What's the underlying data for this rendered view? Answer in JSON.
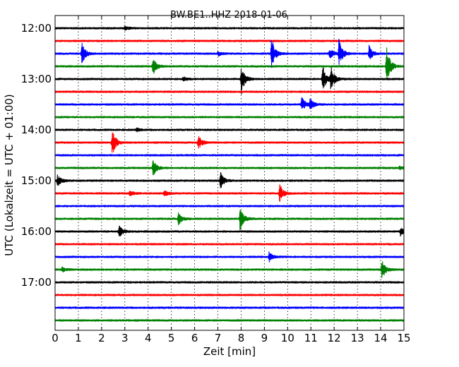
{
  "chart_data": {
    "type": "line",
    "title": "BW.BE1..HHZ 2018-01-06",
    "xlabel": "Zeit  [min]",
    "ylabel": "UTC (Lokalzeit = UTC + 01:00)",
    "xlim": [
      0,
      15
    ],
    "x_ticks": [
      "0",
      "1",
      "2",
      "3",
      "4",
      "5",
      "6",
      "7",
      "8",
      "9",
      "10",
      "11",
      "12",
      "13",
      "14",
      "15"
    ],
    "y_tick_labels": [
      "12:00",
      "13:00",
      "14:00",
      "15:00",
      "16:00",
      "17:00"
    ],
    "vertical_grid": "dotted, every minute",
    "color_cycle": [
      "#000000",
      "#ff0000",
      "#0000ff",
      "#008000"
    ],
    "traces": [
      {
        "start": "12:00",
        "color": "#000000",
        "events": [
          {
            "t": 3.0,
            "a": 0.12
          }
        ]
      },
      {
        "start": "12:15",
        "color": "#ff0000",
        "events": []
      },
      {
        "start": "12:30",
        "color": "#0000ff",
        "events": [
          {
            "t": 1.15,
            "a": 0.7
          },
          {
            "t": 9.3,
            "a": 1.05
          },
          {
            "t": 12.2,
            "a": 0.95
          },
          {
            "t": 11.8,
            "a": 0.35
          },
          {
            "t": 13.5,
            "a": 0.5
          },
          {
            "t": 7.0,
            "a": 0.15
          }
        ]
      },
      {
        "start": "12:45",
        "color": "#008000",
        "events": [
          {
            "t": 4.2,
            "a": 0.6
          },
          {
            "t": 14.25,
            "a": 1.35
          }
        ]
      },
      {
        "start": "13:00",
        "color": "#000000",
        "events": [
          {
            "t": 8.0,
            "a": 1.0
          },
          {
            "t": 11.5,
            "a": 0.9
          },
          {
            "t": 11.85,
            "a": 0.85
          },
          {
            "t": 5.5,
            "a": 0.2
          }
        ]
      },
      {
        "start": "13:15",
        "color": "#ff0000",
        "events": []
      },
      {
        "start": "13:30",
        "color": "#0000ff",
        "events": [
          {
            "t": 10.6,
            "a": 0.5
          },
          {
            "t": 10.95,
            "a": 0.4
          }
        ]
      },
      {
        "start": "13:45",
        "color": "#008000",
        "events": []
      },
      {
        "start": "14:00",
        "color": "#000000",
        "events": [
          {
            "t": 3.5,
            "a": 0.12
          }
        ]
      },
      {
        "start": "14:15",
        "color": "#ff0000",
        "events": [
          {
            "t": 2.45,
            "a": 0.9
          },
          {
            "t": 6.15,
            "a": 0.5
          }
        ]
      },
      {
        "start": "14:30",
        "color": "#0000ff",
        "events": []
      },
      {
        "start": "14:45",
        "color": "#008000",
        "events": [
          {
            "t": 4.2,
            "a": 0.6
          },
          {
            "t": 14.8,
            "a": 0.1
          }
        ]
      },
      {
        "start": "15:00",
        "color": "#000000",
        "events": [
          {
            "t": 7.1,
            "a": 0.55
          },
          {
            "t": 0.1,
            "a": 0.4
          }
        ]
      },
      {
        "start": "15:15",
        "color": "#ff0000",
        "events": [
          {
            "t": 9.65,
            "a": 0.65
          },
          {
            "t": 3.2,
            "a": 0.18
          },
          {
            "t": 4.7,
            "a": 0.2
          }
        ]
      },
      {
        "start": "15:30",
        "color": "#0000ff",
        "events": []
      },
      {
        "start": "15:45",
        "color": "#008000",
        "events": [
          {
            "t": 5.3,
            "a": 0.4
          },
          {
            "t": 7.95,
            "a": 0.8
          }
        ]
      },
      {
        "start": "16:00",
        "color": "#000000",
        "events": [
          {
            "t": 2.75,
            "a": 0.4
          },
          {
            "t": 14.85,
            "a": 0.25
          }
        ]
      },
      {
        "start": "16:15",
        "color": "#ff0000",
        "events": []
      },
      {
        "start": "16:30",
        "color": "#0000ff",
        "events": [
          {
            "t": 9.2,
            "a": 0.3
          }
        ]
      },
      {
        "start": "16:45",
        "color": "#008000",
        "events": [
          {
            "t": 14.05,
            "a": 0.65
          },
          {
            "t": 0.3,
            "a": 0.15
          }
        ]
      },
      {
        "start": "17:00",
        "color": "#000000",
        "events": []
      },
      {
        "start": "17:15",
        "color": "#ff0000",
        "events": []
      },
      {
        "start": "17:30",
        "color": "#0000ff",
        "events": []
      },
      {
        "start": "17:45",
        "color": "#008000",
        "events": []
      }
    ]
  }
}
